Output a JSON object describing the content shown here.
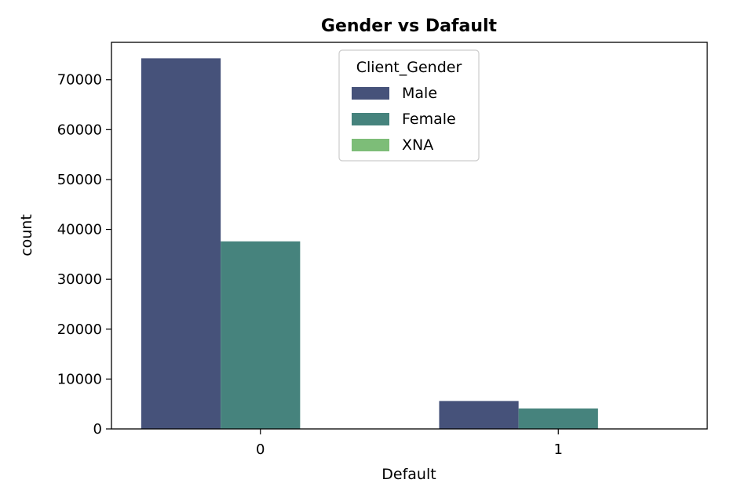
{
  "chart_data": {
    "type": "bar",
    "title": "Gender vs Dafault",
    "xlabel": "Default",
    "ylabel": "count",
    "categories": [
      "0",
      "1"
    ],
    "ylim": [
      0,
      77500
    ],
    "yticks": [
      0,
      10000,
      20000,
      30000,
      40000,
      50000,
      60000,
      70000
    ],
    "grid": false,
    "legend": {
      "title": "Client_Gender",
      "placement": "upper-center"
    },
    "series": [
      {
        "name": "Male",
        "color": "#46527a",
        "values": [
          74300,
          5600
        ]
      },
      {
        "name": "Female",
        "color": "#46837d",
        "values": [
          37600,
          4100
        ]
      },
      {
        "name": "XNA",
        "color": "#7dbd78",
        "values": [
          3,
          0
        ]
      }
    ]
  }
}
